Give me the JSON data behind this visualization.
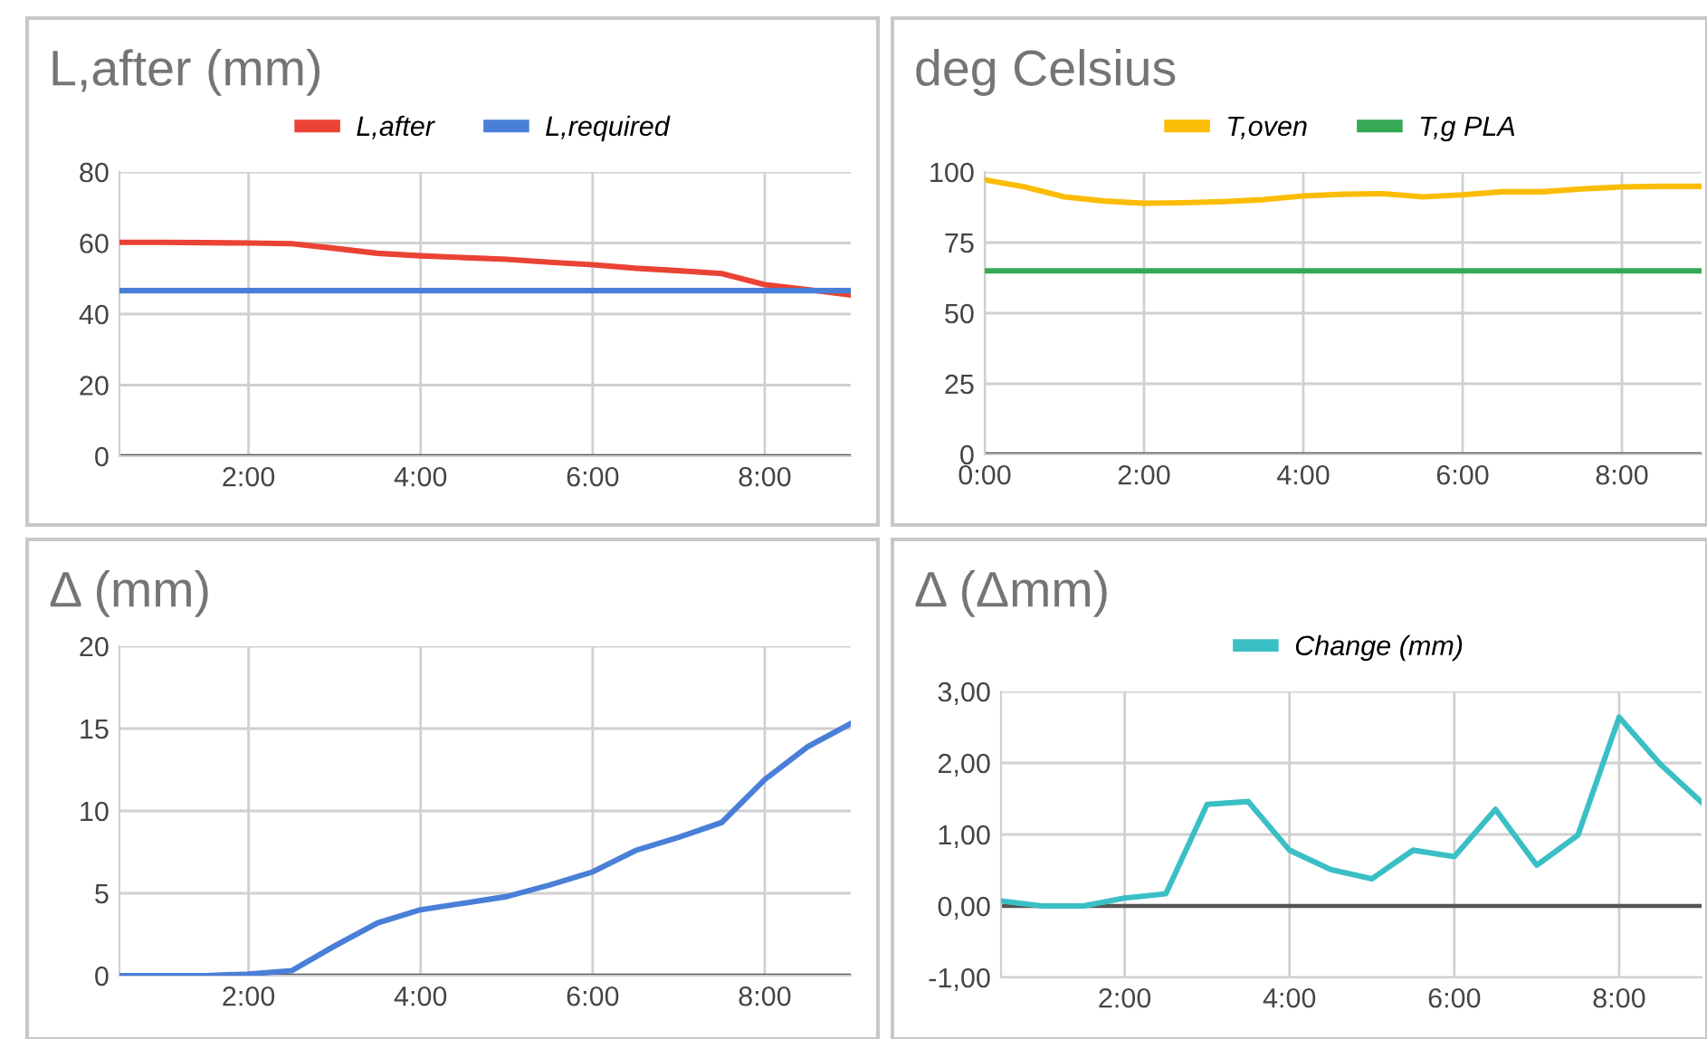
{
  "chart_data": [
    {
      "type": "line",
      "title": "L,after (mm)",
      "legend": "top",
      "grid": true,
      "xlim": [
        0.5,
        9
      ],
      "xticks": [
        {
          "value": 2,
          "label": "2:00"
        },
        {
          "value": 4,
          "label": "4:00"
        },
        {
          "value": 6,
          "label": "6:00"
        },
        {
          "value": 8,
          "label": "8:00"
        }
      ],
      "ylim": [
        0,
        80
      ],
      "yticks": [
        0,
        20,
        40,
        60,
        80
      ],
      "x": [
        0.5,
        1,
        1.5,
        2,
        2.5,
        3,
        3.5,
        4,
        4.5,
        5,
        5.5,
        6,
        6.5,
        7,
        7.5,
        8,
        8.5,
        9
      ],
      "series": [
        {
          "name": "L,after",
          "color": "#ea4335",
          "values": [
            60.2,
            60.2,
            60.1,
            60.0,
            59.8,
            58.5,
            57.1,
            56.4,
            55.9,
            55.4,
            54.6,
            53.9,
            52.9,
            52.2,
            51.4,
            48.3,
            46.9,
            45.4
          ]
        },
        {
          "name": "L,required",
          "color": "#4a7fd8",
          "values": [
            46.6,
            46.6,
            46.6,
            46.6,
            46.6,
            46.6,
            46.6,
            46.6,
            46.6,
            46.6,
            46.6,
            46.6,
            46.6,
            46.6,
            46.6,
            46.6,
            46.6,
            46.6
          ]
        }
      ]
    },
    {
      "type": "line",
      "title": "deg Celsius",
      "legend": "top",
      "grid": true,
      "xlim": [
        0,
        9
      ],
      "xticks": [
        {
          "value": 0,
          "label": "0:00"
        },
        {
          "value": 2,
          "label": "2:00"
        },
        {
          "value": 4,
          "label": "4:00"
        },
        {
          "value": 6,
          "label": "6:00"
        },
        {
          "value": 8,
          "label": "8:00"
        }
      ],
      "ylim": [
        0,
        100
      ],
      "yticks": [
        0,
        25,
        50,
        75,
        100
      ],
      "x": [
        0,
        0.5,
        1,
        1.5,
        2,
        2.5,
        3,
        3.5,
        4,
        4.5,
        5,
        5.5,
        6,
        6.5,
        7,
        7.5,
        8,
        8.5,
        9
      ],
      "series": [
        {
          "name": "T,oven",
          "color": "#fbbc04",
          "values": [
            97.2,
            94.7,
            91.2,
            89.7,
            88.9,
            89.1,
            89.5,
            90.2,
            91.5,
            92.1,
            92.3,
            91.2,
            91.9,
            93.0,
            93.0,
            94.0,
            94.7,
            94.9,
            94.9
          ]
        },
        {
          "name": "T,g PLA",
          "color": "#34a853",
          "values": [
            65,
            65,
            65,
            65,
            65,
            65,
            65,
            65,
            65,
            65,
            65,
            65,
            65,
            65,
            65,
            65,
            65,
            65,
            65
          ]
        }
      ]
    },
    {
      "type": "line",
      "title": "Δ (mm)",
      "grid": true,
      "xlim": [
        0.5,
        9
      ],
      "xticks": [
        {
          "value": 2,
          "label": "2:00"
        },
        {
          "value": 4,
          "label": "4:00"
        },
        {
          "value": 6,
          "label": "6:00"
        },
        {
          "value": 8,
          "label": "8:00"
        }
      ],
      "ylim": [
        0,
        20
      ],
      "yticks": [
        0,
        5,
        10,
        15,
        20
      ],
      "x": [
        0.5,
        1,
        1.5,
        2,
        2.5,
        3,
        3.5,
        4,
        4.5,
        5,
        5.5,
        6,
        6.5,
        7,
        7.5,
        8,
        8.5,
        9
      ],
      "series": [
        {
          "color": "#4a7fd8",
          "values": [
            0,
            0,
            0,
            0.1,
            0.3,
            1.8,
            3.2,
            4.0,
            4.4,
            4.8,
            5.5,
            6.3,
            7.6,
            8.4,
            9.3,
            11.9,
            13.9,
            15.3
          ]
        }
      ]
    },
    {
      "type": "line",
      "title": "Δ (Δmm)",
      "legend": "top",
      "grid": true,
      "xlim": [
        0.5,
        9
      ],
      "xticks": [
        {
          "value": 2,
          "label": "2:00"
        },
        {
          "value": 4,
          "label": "4:00"
        },
        {
          "value": 6,
          "label": "6:00"
        },
        {
          "value": 8,
          "label": "8:00"
        }
      ],
      "ylim": [
        -1,
        3
      ],
      "yticks": [
        {
          "value": -1,
          "label": "-1,00"
        },
        {
          "value": 0,
          "label": "0,00"
        },
        {
          "value": 1,
          "label": "1,00"
        },
        {
          "value": 2,
          "label": "2,00"
        },
        {
          "value": 3,
          "label": "3,00"
        }
      ],
      "x": [
        0.5,
        1,
        1.5,
        2,
        2.5,
        3,
        3.5,
        4,
        4.5,
        5,
        5.5,
        6,
        6.5,
        7,
        7.5,
        8,
        8.5,
        9
      ],
      "series": [
        {
          "name": "Change (mm)",
          "color": "#3bbfc6",
          "values": [
            0.07,
            0.0,
            0.0,
            0.11,
            0.17,
            1.42,
            1.46,
            0.78,
            0.51,
            0.38,
            0.78,
            0.69,
            1.35,
            0.57,
            0.99,
            2.64,
            1.98,
            1.45
          ]
        }
      ]
    }
  ]
}
